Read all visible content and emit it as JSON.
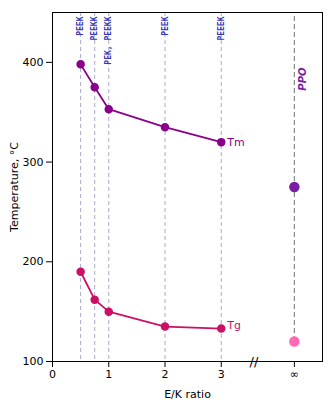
{
  "chart_data": {
    "type": "line",
    "xlabel": "E/K ratio",
    "ylabel": "Temperature, °C",
    "xlim": [
      0,
      4.8
    ],
    "ylim": [
      100,
      450
    ],
    "xticks": [
      0,
      1,
      2,
      3,
      {
        "value": 4.3,
        "label": "∞"
      }
    ],
    "yticks": [
      100,
      200,
      300,
      400
    ],
    "grid": false,
    "series": [
      {
        "name": "Tm",
        "type": "line",
        "color": "#8b008b",
        "marker": "circle",
        "x": [
          0.5,
          0.75,
          1.0,
          2.0,
          3.0
        ],
        "values": [
          398,
          375,
          353,
          335,
          320
        ]
      },
      {
        "name": "Tg",
        "type": "line",
        "color": "#cc1066",
        "marker": "circle",
        "x": [
          0.5,
          0.75,
          1.0,
          2.0,
          3.0
        ],
        "values": [
          190,
          162,
          150,
          135,
          133
        ]
      },
      {
        "name": "PPO",
        "type": "scatter",
        "color": "#888888",
        "line_style": "dashed",
        "colors": [
          "#7b1fa2",
          "#ff69b4"
        ],
        "x": [
          4.3,
          4.3
        ],
        "values": [
          275,
          120
        ]
      }
    ],
    "vlines": {
      "color": "#aaaacc",
      "label_color": "#3333bb",
      "lines": [
        {
          "x": 0.5,
          "label": "PEEK"
        },
        {
          "x": 0.75,
          "label": "PEEKK"
        },
        {
          "x": 1.0,
          "label": "PEK, PEEKK"
        },
        {
          "x": 2.0,
          "label": "PEEK"
        },
        {
          "x": 3.0,
          "label": "PEEEK"
        }
      ]
    },
    "annotations": [
      {
        "text": "//",
        "x": 3.58,
        "y": 100
      }
    ]
  }
}
